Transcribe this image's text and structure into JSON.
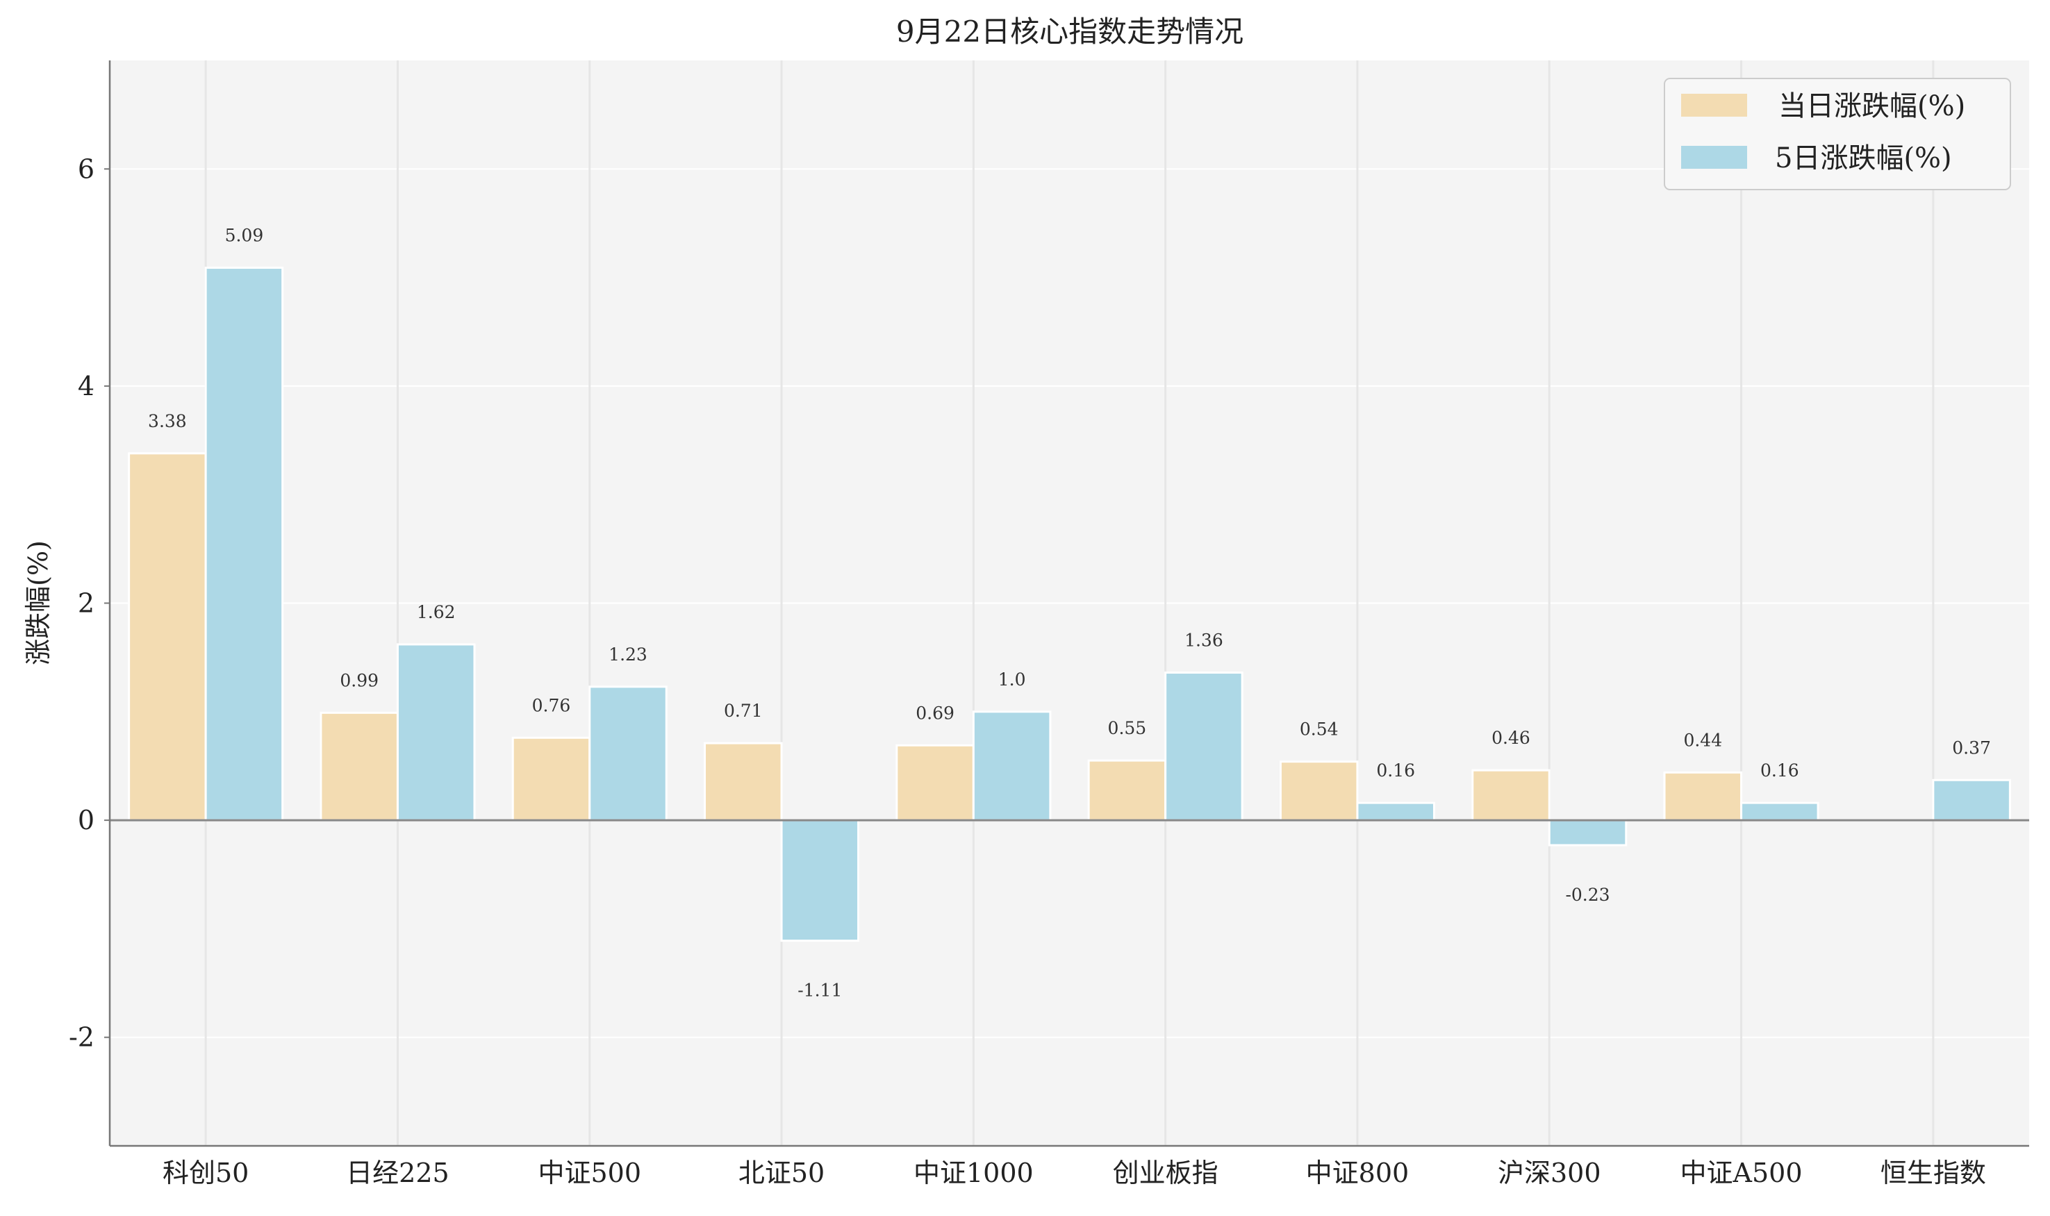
{
  "chart_data": {
    "type": "bar",
    "title": "9月22日核心指数走势情况",
    "xlabel": "",
    "ylabel": "涨跌幅(%)",
    "ylim": [
      -3,
      7
    ],
    "yticks": [
      -2,
      0,
      2,
      4,
      6
    ],
    "grid": true,
    "legend_position": "top-right",
    "categories": [
      "科创50",
      "日经225",
      "中证500",
      "北证50",
      "中证1000",
      "创业板指",
      "中证800",
      "沪深300",
      "中证A500",
      "恒生指数"
    ],
    "series": [
      {
        "name": "当日涨跌幅(%)",
        "color": "#F3DCB2",
        "values": [
          3.38,
          0.99,
          0.76,
          0.71,
          0.69,
          0.55,
          0.54,
          0.46,
          0.44,
          null
        ],
        "labels": [
          "3.38",
          "0.99",
          "0.76",
          "0.71",
          "0.69",
          "0.55",
          "0.54",
          "0.46",
          "0.44",
          null
        ]
      },
      {
        "name": "5日涨跌幅(%)",
        "color": "#ADD8E6",
        "values": [
          5.09,
          1.62,
          1.23,
          -1.11,
          1.0,
          1.36,
          0.16,
          -0.23,
          0.16,
          0.37
        ],
        "labels": [
          "5.09",
          "1.62",
          "1.23",
          "-1.11",
          "1.0",
          "1.36",
          "0.16",
          "-0.23",
          "0.16",
          "0.37"
        ]
      }
    ]
  }
}
